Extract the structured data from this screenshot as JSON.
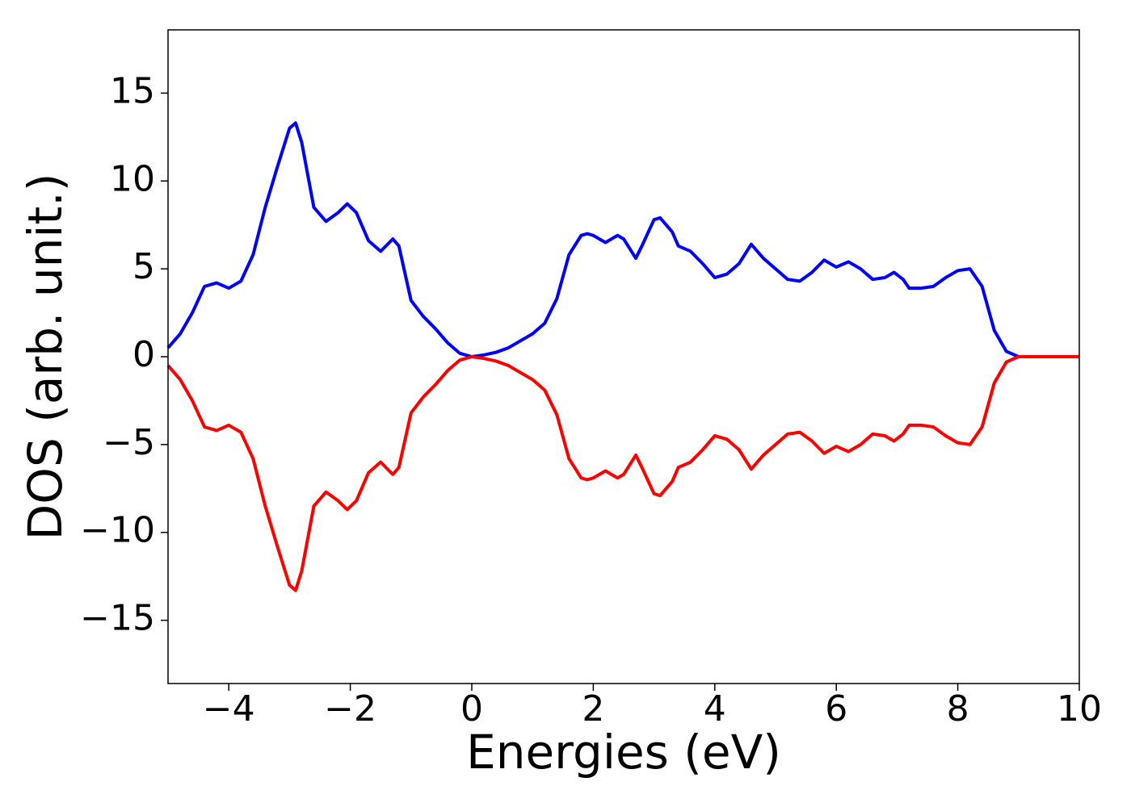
{
  "chart_data": {
    "type": "line",
    "xlabel": "Energies (eV)",
    "ylabel": "DOS (arb. unit.)",
    "x": [
      -5,
      -4.8,
      -4.6,
      -4.4,
      -4.2,
      -4.0,
      -3.8,
      -3.6,
      -3.4,
      -3.2,
      -3.0,
      -2.9,
      -2.8,
      -2.6,
      -2.4,
      -2.2,
      -2.05,
      -1.9,
      -1.7,
      -1.5,
      -1.3,
      -1.2,
      -1.0,
      -0.8,
      -0.6,
      -0.4,
      -0.2,
      0,
      0.2,
      0.4,
      0.6,
      0.8,
      1.0,
      1.2,
      1.4,
      1.6,
      1.8,
      1.9,
      2.0,
      2.2,
      2.4,
      2.5,
      2.7,
      2.8,
      3.0,
      3.1,
      3.3,
      3.4,
      3.6,
      3.8,
      4.0,
      4.2,
      4.4,
      4.6,
      4.8,
      5.0,
      5.2,
      5.4,
      5.6,
      5.8,
      6.0,
      6.2,
      6.4,
      6.6,
      6.8,
      6.95,
      7.1,
      7.2,
      7.4,
      7.6,
      7.8,
      8.0,
      8.2,
      8.4,
      8.6,
      8.8,
      9.0,
      10.0
    ],
    "series": [
      {
        "color": "#0000ff",
        "values": [
          0.5,
          1.3,
          2.5,
          4.0,
          4.2,
          3.9,
          4.3,
          5.8,
          8.5,
          10.8,
          13.0,
          13.3,
          12.2,
          8.5,
          7.7,
          8.2,
          8.7,
          8.2,
          6.6,
          6.0,
          6.7,
          6.3,
          3.2,
          2.3,
          1.6,
          0.8,
          0.2,
          0.0,
          0.1,
          0.25,
          0.5,
          0.9,
          1.3,
          1.9,
          3.3,
          5.8,
          6.9,
          7.0,
          6.9,
          6.5,
          6.9,
          6.7,
          5.6,
          6.3,
          7.8,
          7.9,
          7.1,
          6.3,
          6.0,
          5.3,
          4.5,
          4.7,
          5.3,
          6.4,
          5.6,
          5.0,
          4.4,
          4.3,
          4.8,
          5.5,
          5.1,
          5.4,
          5.0,
          4.4,
          4.5,
          4.8,
          4.4,
          3.9,
          3.9,
          4.0,
          4.5,
          4.9,
          5.0,
          4.0,
          1.5,
          0.3,
          0.0,
          0.0
        ]
      },
      {
        "color": "#ff0000",
        "values": [
          -0.5,
          -1.3,
          -2.5,
          -4.0,
          -4.2,
          -3.9,
          -4.3,
          -5.8,
          -8.5,
          -10.8,
          -13.0,
          -13.3,
          -12.2,
          -8.5,
          -7.7,
          -8.2,
          -8.7,
          -8.2,
          -6.6,
          -6.0,
          -6.7,
          -6.3,
          -3.2,
          -2.3,
          -1.6,
          -0.8,
          -0.2,
          0.0,
          -0.1,
          -0.25,
          -0.5,
          -0.9,
          -1.3,
          -1.9,
          -3.3,
          -5.8,
          -6.9,
          -7.0,
          -6.9,
          -6.5,
          -6.9,
          -6.7,
          -5.6,
          -6.3,
          -7.8,
          -7.9,
          -7.1,
          -6.3,
          -6.0,
          -5.3,
          -4.5,
          -4.7,
          -5.3,
          -6.4,
          -5.6,
          -5.0,
          -4.4,
          -4.3,
          -4.8,
          -5.5,
          -5.1,
          -5.4,
          -5.0,
          -4.4,
          -4.5,
          -4.8,
          -4.4,
          -3.9,
          -3.9,
          -4.0,
          -4.5,
          -4.9,
          -5.0,
          -4.0,
          -1.5,
          -0.3,
          0.0,
          0.0
        ]
      }
    ],
    "xlim": [
      -5,
      10
    ],
    "xticks": [
      {
        "value": -4,
        "label": "−4"
      },
      {
        "value": -2,
        "label": "−2"
      },
      0,
      2,
      4,
      6,
      8,
      10
    ],
    "ylim": [
      -18.6,
      18.6
    ],
    "yticks": [
      {
        "value": -15,
        "label": "−15"
      },
      {
        "value": -10,
        "label": "−10"
      },
      {
        "value": -5,
        "label": "−5"
      },
      0,
      5,
      10,
      15
    ],
    "grid": false
  }
}
